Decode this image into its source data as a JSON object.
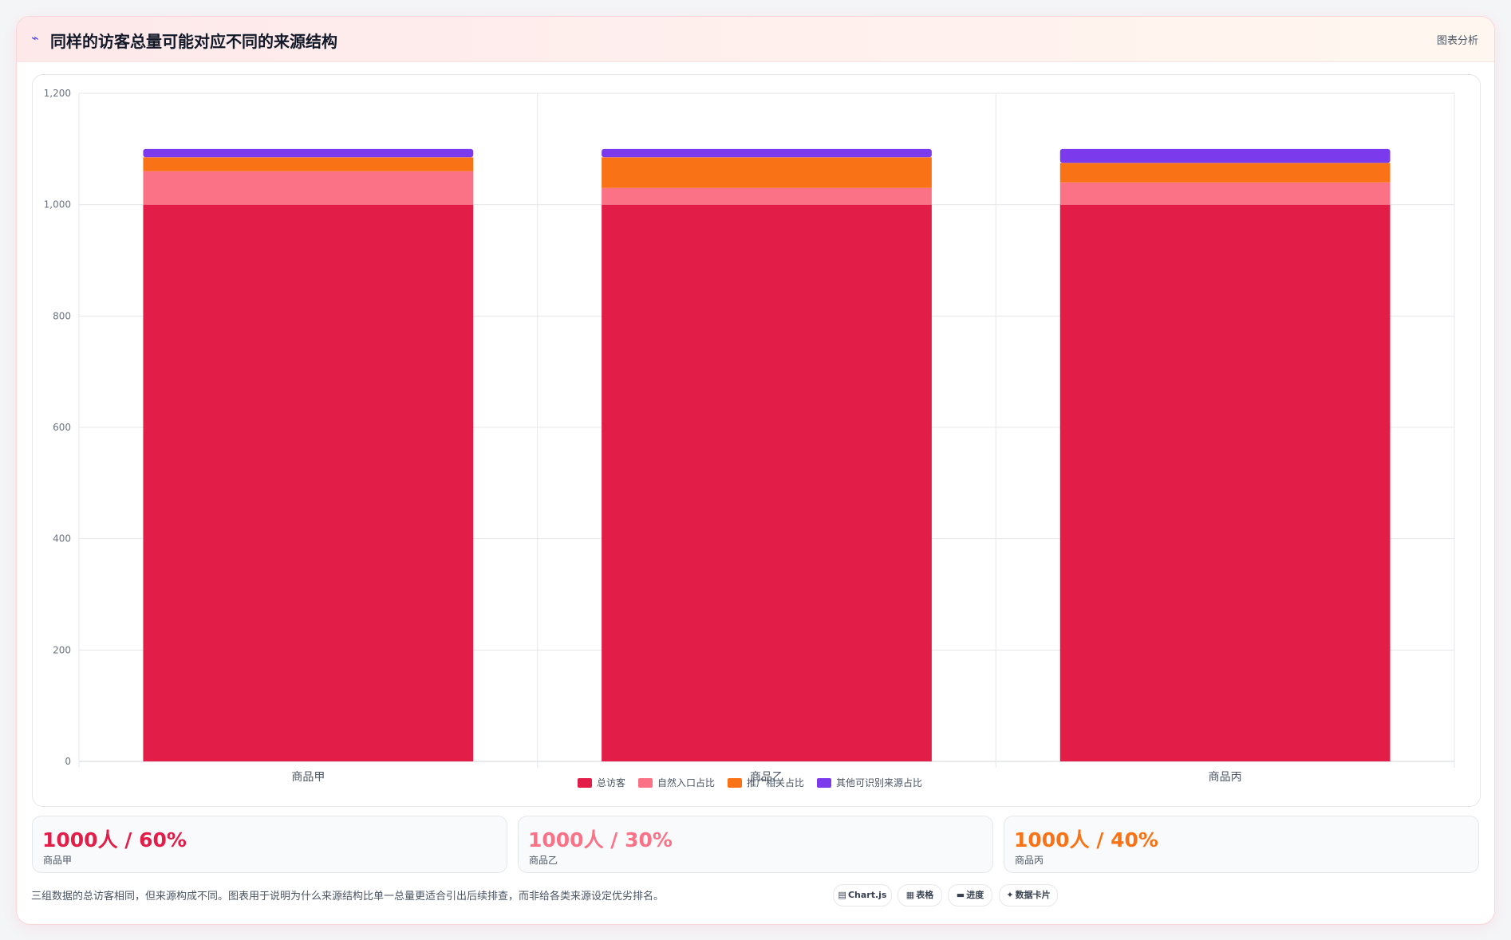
{
  "header": {
    "icon": "chart-icon",
    "title": "同样的访客总量可能对应不同的来源结构",
    "tag": "图表分析"
  },
  "chart_data": {
    "type": "bar",
    "stacked": true,
    "categories": [
      "商品甲",
      "商品乙",
      "商品丙"
    ],
    "series": [
      {
        "name": "总访客",
        "color": "#e11d48",
        "values": [
          1000,
          1000,
          1000
        ]
      },
      {
        "name": "自然入口占比",
        "color": "#fb7185",
        "values": [
          60,
          30,
          40
        ]
      },
      {
        "name": "推广相关占比",
        "color": "#f97316",
        "values": [
          25,
          55,
          35
        ]
      },
      {
        "name": "其他可识别来源占比",
        "color": "#7c3aed",
        "values": [
          15,
          15,
          25
        ]
      }
    ],
    "ylim": [
      0,
      1200
    ],
    "yticks": [
      0,
      200,
      400,
      600,
      800,
      1000,
      1200
    ],
    "ytick_labels": [
      "0",
      "200",
      "400",
      "600",
      "800",
      "1,000",
      "1,200"
    ],
    "grid": true,
    "legend_position": "bottom"
  },
  "stats": [
    {
      "value": "1000人 / 60%",
      "label": "商品甲",
      "color": "#e11d48"
    },
    {
      "value": "1000人 / 30%",
      "label": "商品乙",
      "color": "#fb7185"
    },
    {
      "value": "1000人 / 40%",
      "label": "商品丙",
      "color": "#f97316"
    }
  ],
  "footnote": "三组数据的总访客相同，但来源构成不同。图表用于说明为什么来源结构比单一总量更适合引出后续排查，而非给各类来源设定优劣排名。",
  "chips": [
    {
      "icon": "chart-icon",
      "glyph": "▤",
      "label": "Chart.js"
    },
    {
      "icon": "table-icon",
      "glyph": "▦",
      "label": "表格"
    },
    {
      "icon": "progress-icon",
      "glyph": "▬",
      "label": "进度"
    },
    {
      "icon": "card-icon",
      "glyph": "✦",
      "label": "数据卡片"
    }
  ]
}
